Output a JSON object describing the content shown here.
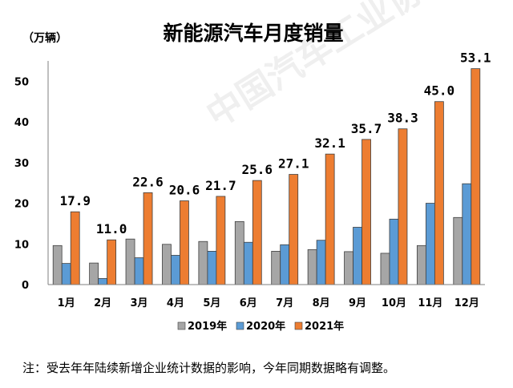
{
  "chart_data": {
    "type": "bar",
    "title": "新能源汽车月度销量",
    "unit_label": "（万辆）",
    "categories": [
      "1月",
      "2月",
      "3月",
      "4月",
      "5月",
      "6月",
      "7月",
      "8月",
      "9月",
      "10月",
      "11月",
      "12月"
    ],
    "series": [
      {
        "name": "2019年",
        "color": "#a6a6a6",
        "values": [
          9.6,
          5.3,
          11.2,
          9.9,
          10.6,
          15.5,
          8.2,
          8.6,
          8.1,
          7.7,
          9.6,
          16.5
        ]
      },
      {
        "name": "2020年",
        "color": "#5b9bd5",
        "values": [
          5.2,
          1.5,
          6.6,
          7.2,
          8.2,
          10.4,
          9.8,
          10.9,
          14.1,
          16.1,
          20.0,
          24.8
        ]
      },
      {
        "name": "2021年",
        "color": "#ed7d31",
        "values": [
          17.9,
          11.0,
          22.6,
          20.6,
          21.7,
          25.6,
          27.1,
          32.1,
          35.7,
          38.3,
          45.0,
          53.1
        ]
      }
    ],
    "data_labels": [
      "17.9",
      "11.0",
      "22.6",
      "20.6",
      "21.7",
      "25.6",
      "27.1",
      "32.1",
      "35.7",
      "38.3",
      "45.0",
      "53.1"
    ],
    "yticks": [
      "0",
      "10",
      "20",
      "30",
      "40",
      "50"
    ],
    "ylim": [
      0,
      55
    ],
    "legend_position": "bottom"
  },
  "note": "注：受去年年陆续新增企业统计数据的影响，今年同期数据略有调整。",
  "watermark": "中国汽车工业协会"
}
